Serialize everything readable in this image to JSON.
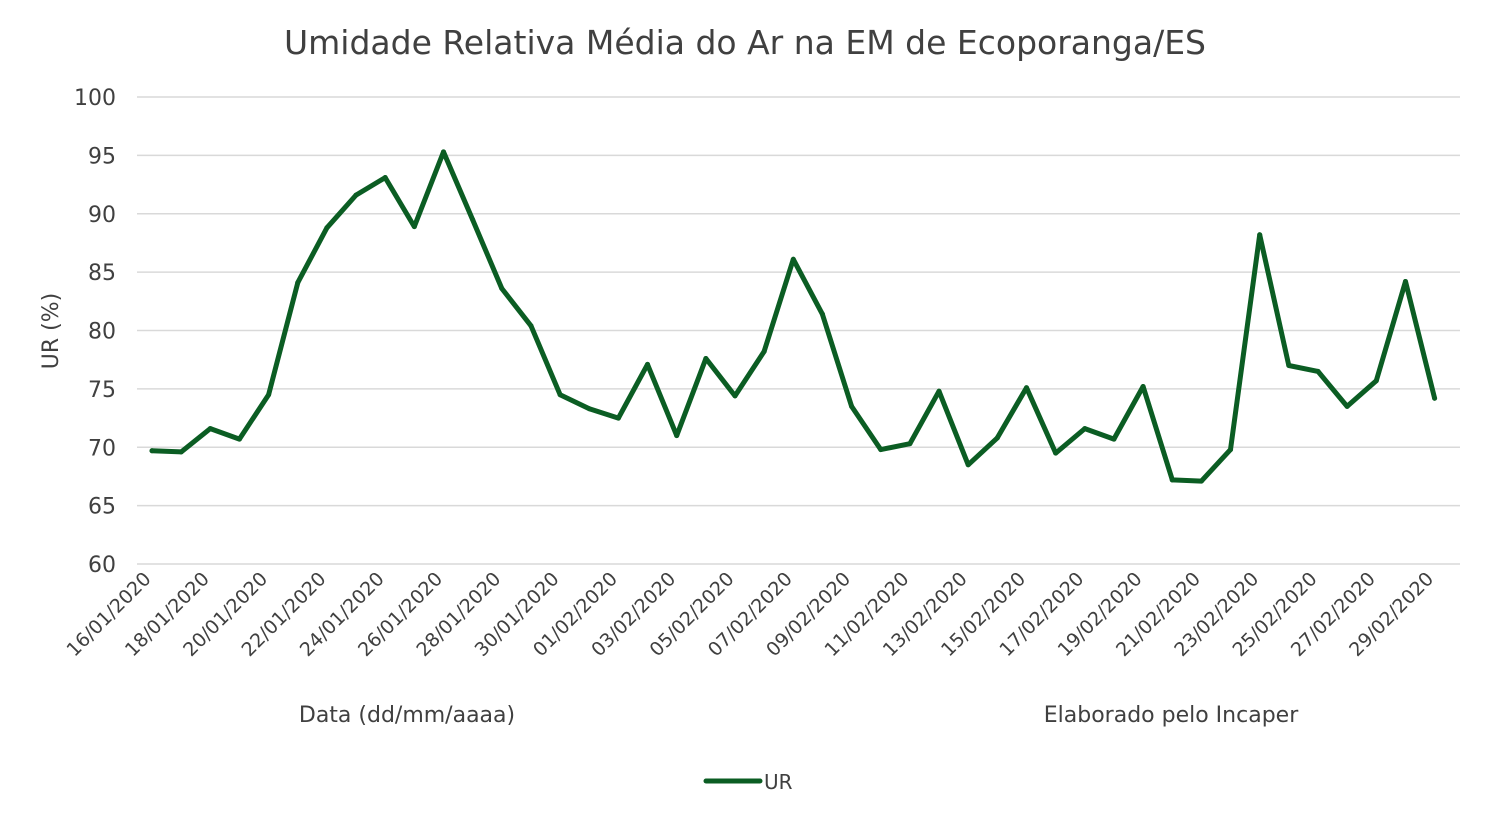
{
  "chart_data": {
    "type": "line",
    "title": "Umidade Relativa Média do Ar na EM de Ecoporanga/ES",
    "xlabel": "Data (dd/mm/aaaa)",
    "ylabel": "UR (%)",
    "note": "Elaborado pelo Incaper",
    "ylim": [
      60,
      100
    ],
    "yticks": [
      60,
      65,
      70,
      75,
      80,
      85,
      90,
      95,
      100
    ],
    "grid": true,
    "legend_position": "bottom",
    "line_color": "#0b5d23",
    "x": [
      "16/01/2020",
      "17/01/2020",
      "18/01/2020",
      "19/01/2020",
      "20/01/2020",
      "21/01/2020",
      "22/01/2020",
      "23/01/2020",
      "24/01/2020",
      "25/01/2020",
      "26/01/2020",
      "27/01/2020",
      "28/01/2020",
      "29/01/2020",
      "30/01/2020",
      "31/01/2020",
      "01/02/2020",
      "02/02/2020",
      "03/02/2020",
      "04/02/2020",
      "05/02/2020",
      "06/02/2020",
      "07/02/2020",
      "08/02/2020",
      "09/02/2020",
      "10/02/2020",
      "11/02/2020",
      "12/02/2020",
      "13/02/2020",
      "14/02/2020",
      "15/02/2020",
      "16/02/2020",
      "17/02/2020",
      "18/02/2020",
      "19/02/2020",
      "20/02/2020",
      "21/02/2020",
      "22/02/2020",
      "23/02/2020",
      "24/02/2020",
      "25/02/2020",
      "26/02/2020",
      "27/02/2020",
      "28/02/2020",
      "29/02/2020"
    ],
    "xtick_labels": [
      "16/01/2020",
      "18/01/2020",
      "20/01/2020",
      "22/01/2020",
      "24/01/2020",
      "26/01/2020",
      "28/01/2020",
      "30/01/2020",
      "01/02/2020",
      "03/02/2020",
      "05/02/2020",
      "07/02/2020",
      "09/02/2020",
      "11/02/2020",
      "13/02/2020",
      "15/02/2020",
      "17/02/2020",
      "19/02/2020",
      "21/02/2020",
      "23/02/2020",
      "25/02/2020",
      "27/02/2020",
      "29/02/2020"
    ],
    "series": [
      {
        "name": "UR",
        "values": [
          69.7,
          69.6,
          71.6,
          70.7,
          74.5,
          84.1,
          88.8,
          91.6,
          93.1,
          88.9,
          95.3,
          89.5,
          83.6,
          80.4,
          74.5,
          73.3,
          72.5,
          77.1,
          71.0,
          77.6,
          74.4,
          78.2,
          86.1,
          81.4,
          73.5,
          69.8,
          70.3,
          74.8,
          68.5,
          70.8,
          75.1,
          69.5,
          71.6,
          70.7,
          75.2,
          67.2,
          67.1,
          69.8,
          88.2,
          77.0,
          76.5,
          73.5,
          75.7,
          84.2,
          74.2
        ]
      }
    ]
  }
}
